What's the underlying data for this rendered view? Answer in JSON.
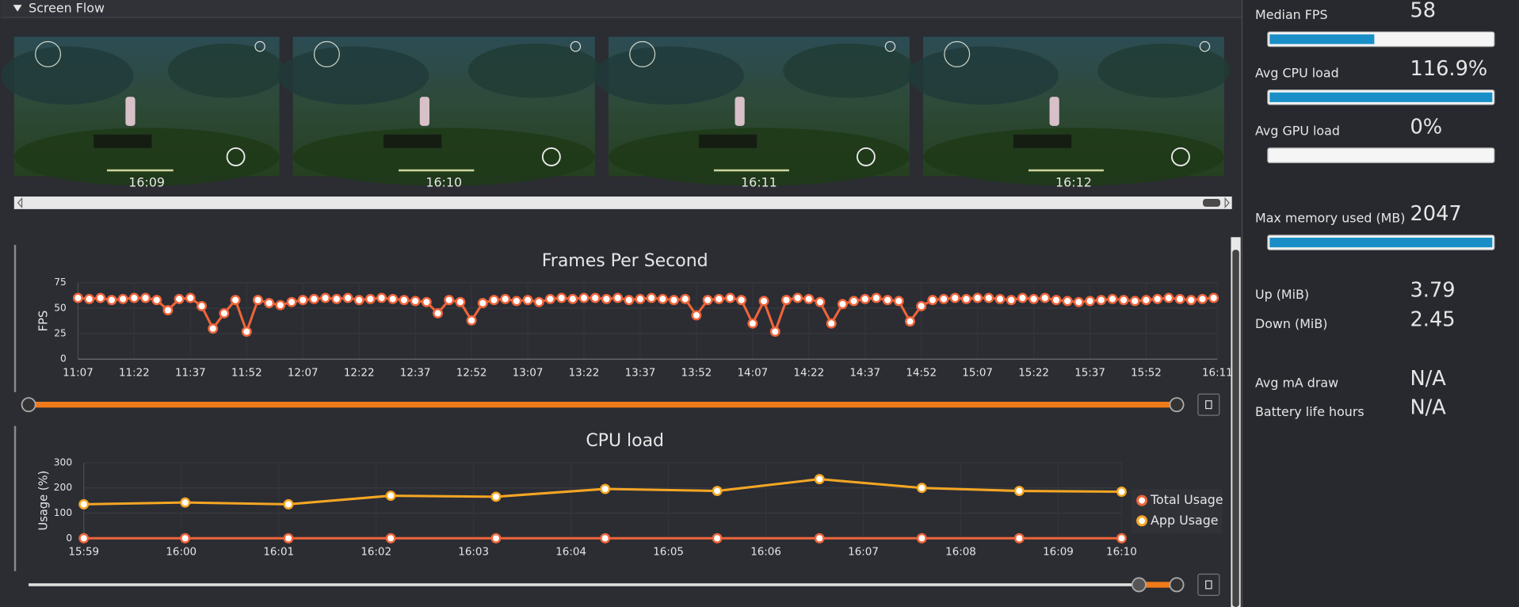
{
  "screen_flow": {
    "title": "Screen Flow",
    "thumbnails": [
      "16:09",
      "16:10",
      "16:11",
      "16:12"
    ]
  },
  "chart_data": [
    {
      "type": "line",
      "title": "Frames Per Second",
      "y_label": "FPS",
      "color": "#f0643a",
      "x": [
        667,
        670,
        673,
        676,
        679,
        682,
        685,
        688,
        691,
        694,
        697,
        700,
        703,
        706,
        709,
        712,
        715,
        718,
        721,
        724,
        727,
        730,
        733,
        736,
        739,
        742,
        745,
        748,
        751,
        754,
        757,
        760,
        763,
        766,
        769,
        772,
        775,
        778,
        781,
        784,
        787,
        790,
        793,
        796,
        799,
        802,
        805,
        808,
        811,
        814,
        817,
        820,
        823,
        826,
        829,
        832,
        835,
        838,
        841,
        844,
        847,
        850,
        853,
        856,
        859,
        862,
        865,
        868,
        871,
        874,
        877,
        880,
        883,
        886,
        889,
        892,
        895,
        898,
        901,
        904,
        907,
        910,
        913,
        916,
        919,
        922,
        925,
        928,
        931,
        934,
        937,
        940,
        943,
        946,
        949,
        952,
        955,
        958,
        961,
        964,
        967,
        970
      ],
      "values": [
        60,
        59,
        60,
        58,
        59,
        60,
        60,
        58,
        48,
        59,
        60,
        52,
        30,
        45,
        58,
        27,
        58,
        55,
        53,
        56,
        58,
        59,
        60,
        59,
        60,
        58,
        59,
        60,
        59,
        58,
        57,
        56,
        45,
        58,
        56,
        38,
        55,
        58,
        59,
        57,
        58,
        56,
        59,
        60,
        59,
        60,
        60,
        59,
        60,
        58,
        59,
        60,
        59,
        58,
        59,
        43,
        58,
        59,
        60,
        58,
        35,
        57,
        27,
        58,
        60,
        59,
        56,
        35,
        54,
        57,
        59,
        60,
        58,
        57,
        37,
        52,
        58,
        59,
        60,
        59,
        60,
        60,
        59,
        58,
        60,
        59,
        60,
        58,
        57,
        56,
        57,
        58,
        59,
        58,
        57,
        58,
        59,
        60,
        59,
        58,
        59,
        60
      ],
      "xlim": [
        667,
        971
      ],
      "xticks": [
        {
          "value": 667,
          "label": "11:07"
        },
        {
          "value": 682,
          "label": "11:22"
        },
        {
          "value": 697,
          "label": "11:37"
        },
        {
          "value": 712,
          "label": "11:52"
        },
        {
          "value": 727,
          "label": "12:07"
        },
        {
          "value": 742,
          "label": "12:22"
        },
        {
          "value": 757,
          "label": "12:37"
        },
        {
          "value": 772,
          "label": "12:52"
        },
        {
          "value": 787,
          "label": "13:07"
        },
        {
          "value": 802,
          "label": "13:22"
        },
        {
          "value": 817,
          "label": "13:37"
        },
        {
          "value": 832,
          "label": "13:52"
        },
        {
          "value": 847,
          "label": "14:07"
        },
        {
          "value": 862,
          "label": "14:22"
        },
        {
          "value": 877,
          "label": "14:37"
        },
        {
          "value": 892,
          "label": "14:52"
        },
        {
          "value": 907,
          "label": "15:07"
        },
        {
          "value": 922,
          "label": "15:22"
        },
        {
          "value": 937,
          "label": "15:37"
        },
        {
          "value": 952,
          "label": "15:52"
        },
        {
          "value": 971,
          "label": "16:11"
        }
      ],
      "ylim": [
        0,
        75
      ],
      "yticks": [
        0,
        25,
        50,
        75
      ],
      "grid": true
    },
    {
      "type": "line",
      "title": "CPU load",
      "y_label": "Usage (%)",
      "x": [
        959,
        960.04,
        961.1,
        962.15,
        963.23,
        964.35,
        965.5,
        966.55,
        967.6,
        968.6,
        969.65
      ],
      "series": [
        {
          "name": "Total Usage",
          "color": "#f0643a",
          "values": [
            0,
            0,
            0,
            0,
            0,
            0,
            0,
            0,
            0,
            0,
            0
          ]
        },
        {
          "name": "App Usage",
          "color": "#f5a623",
          "values": [
            135,
            142,
            135,
            169,
            165,
            196,
            188,
            235,
            200,
            188,
            185
          ]
        }
      ],
      "xlim": [
        959,
        969.65
      ],
      "xticks": [
        {
          "value": 959,
          "label": "15:59"
        },
        {
          "value": 960,
          "label": "16:00"
        },
        {
          "value": 961,
          "label": "16:01"
        },
        {
          "value": 962,
          "label": "16:02"
        },
        {
          "value": 963,
          "label": "16:03"
        },
        {
          "value": 964,
          "label": "16:04"
        },
        {
          "value": 965,
          "label": "16:05"
        },
        {
          "value": 966,
          "label": "16:06"
        },
        {
          "value": 967,
          "label": "16:07"
        },
        {
          "value": 968,
          "label": "16:08"
        },
        {
          "value": 969,
          "label": "16:09"
        },
        {
          "value": 969.65,
          "label": "16:10"
        }
      ],
      "ylim": [
        0,
        300
      ],
      "yticks": [
        0,
        100,
        200,
        300
      ],
      "grid": true,
      "legend": "right"
    }
  ],
  "stats": [
    {
      "label": "Median FPS",
      "value": "58",
      "fill": 47
    },
    {
      "label": "Avg CPU load",
      "value": "116.9%",
      "fill": 100
    },
    {
      "label": "Avg GPU load",
      "value": "0%",
      "fill": 0
    },
    {
      "label": "Max memory used (MB)",
      "value": "2047",
      "fill": 100
    },
    {
      "label": "Up (MiB)",
      "value": "3.79"
    },
    {
      "label": "Down (MiB)",
      "value": "2.45"
    },
    {
      "label": "Avg mA draw",
      "value": "N/A"
    },
    {
      "label": "Battery life hours",
      "value": "N/A"
    }
  ]
}
